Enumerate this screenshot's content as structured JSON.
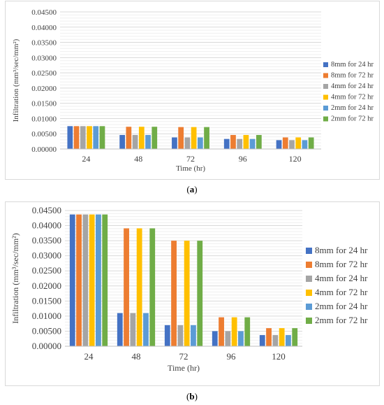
{
  "colors": [
    "#4472c4",
    "#ed7d31",
    "#a5a5a5",
    "#ffc000",
    "#5b9bd5",
    "#70ad47"
  ],
  "captions": {
    "a": "a",
    "b": "b"
  },
  "chart_data": [
    {
      "type": "bar",
      "panel": "a",
      "categories": [
        "24",
        "48",
        "72",
        "96",
        "120"
      ],
      "series": [
        {
          "name": "8mm for 24 hr",
          "values": [
            0.0075,
            0.0046,
            0.0038,
            0.0033,
            0.0029
          ]
        },
        {
          "name": "8mm for 72 hr",
          "values": [
            0.0075,
            0.0073,
            0.0072,
            0.0046,
            0.0038
          ]
        },
        {
          "name": "4mm for 24 hr",
          "values": [
            0.0075,
            0.0046,
            0.0038,
            0.0033,
            0.0029
          ]
        },
        {
          "name": "4mm for 72 hr",
          "values": [
            0.0075,
            0.0073,
            0.0072,
            0.0046,
            0.0038
          ]
        },
        {
          "name": "2mm for 24 hr",
          "values": [
            0.0075,
            0.0046,
            0.0038,
            0.0033,
            0.0029
          ]
        },
        {
          "name": "2mm for 72 hr",
          "values": [
            0.0075,
            0.0073,
            0.0072,
            0.0046,
            0.0038
          ]
        }
      ],
      "xlabel": "Time (hr)",
      "ylabel": "Infiltration (mm³/sec/mm²)",
      "ylim": [
        0,
        0.045
      ],
      "yticks": [
        "0.00000",
        "0.00500",
        "0.01000",
        "0.01500",
        "0.02000",
        "0.02500",
        "0.03000",
        "0.03500",
        "0.04000",
        "0.04500"
      ],
      "grid": true,
      "legend": "right"
    },
    {
      "type": "bar",
      "panel": "b",
      "categories": [
        "24",
        "48",
        "72",
        "96",
        "120"
      ],
      "series": [
        {
          "name": "8mm for 24 hr",
          "values": [
            0.0437,
            0.011,
            0.007,
            0.005,
            0.0037
          ]
        },
        {
          "name": "8mm for 72 hr",
          "values": [
            0.0437,
            0.0391,
            0.035,
            0.0096,
            0.006
          ]
        },
        {
          "name": "4mm for 24 hr",
          "values": [
            0.0437,
            0.011,
            0.007,
            0.005,
            0.0037
          ]
        },
        {
          "name": "4mm for 72 hr",
          "values": [
            0.0437,
            0.0391,
            0.035,
            0.0096,
            0.006
          ]
        },
        {
          "name": "2mm for 24 hr",
          "values": [
            0.0437,
            0.011,
            0.007,
            0.005,
            0.0037
          ]
        },
        {
          "name": "2mm for 72 hr",
          "values": [
            0.0437,
            0.0391,
            0.035,
            0.0096,
            0.006
          ]
        }
      ],
      "xlabel": "Time (hr)",
      "ylabel": "Infiltration (mm³/sec/mm²)",
      "ylim": [
        0,
        0.045
      ],
      "yticks": [
        "0.00000",
        "0.00500",
        "0.01000",
        "0.01500",
        "0.02000",
        "0.02500",
        "0.03000",
        "0.03500",
        "0.04000",
        "0.04500"
      ],
      "grid": true,
      "legend": "right"
    }
  ]
}
